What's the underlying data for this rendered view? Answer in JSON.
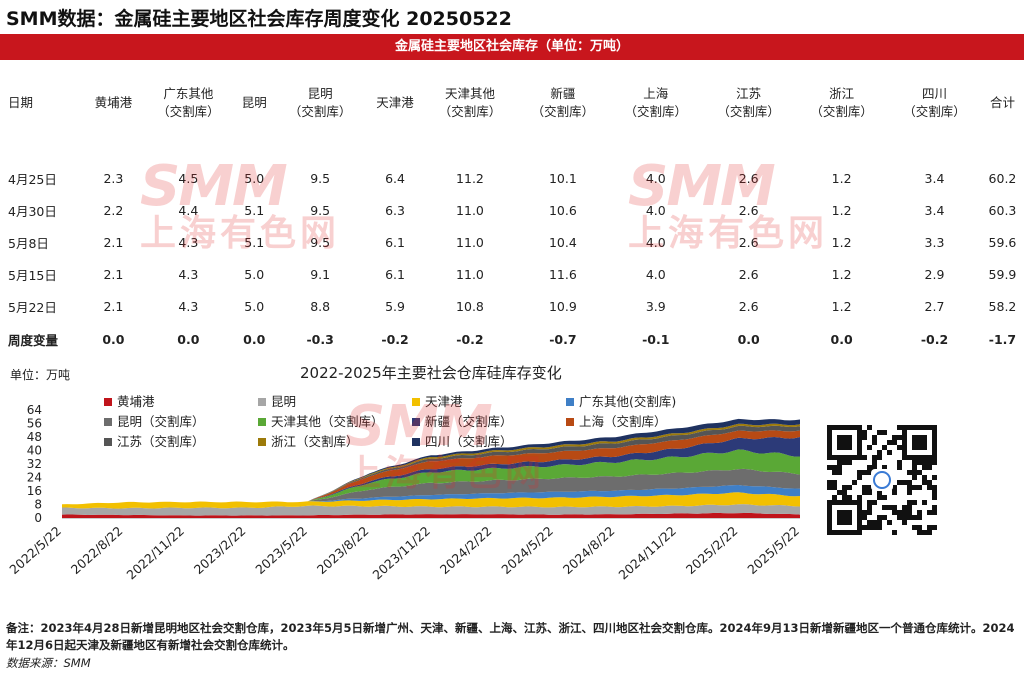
{
  "title": "SMM数据：金属硅主要地区社会库存周度变化 20250522",
  "banner": "金属硅主要地区社会库存（单位：万吨）",
  "table": {
    "headers": [
      [
        "日期"
      ],
      [
        "黄埔港"
      ],
      [
        "广东其他",
        "（交割库）"
      ],
      [
        "昆明"
      ],
      [
        "昆明",
        "（交割库）"
      ],
      [
        "天津港"
      ],
      [
        "天津其他",
        "（交割库）"
      ],
      [
        "新疆",
        "（交割库）"
      ],
      [
        "上海",
        "（交割库）"
      ],
      [
        "江苏",
        "（交割库）"
      ],
      [
        "浙江",
        "（交割库）"
      ],
      [
        "四川",
        "（交割库）"
      ],
      [
        "合计"
      ]
    ],
    "rows": [
      [
        "4月25日",
        "2.3",
        "4.5",
        "5.0",
        "9.5",
        "6.4",
        "11.2",
        "10.1",
        "4.0",
        "2.6",
        "1.2",
        "3.4",
        "60.2"
      ],
      [
        "4月30日",
        "2.2",
        "4.4",
        "5.1",
        "9.5",
        "6.3",
        "11.0",
        "10.6",
        "4.0",
        "2.6",
        "1.2",
        "3.4",
        "60.3"
      ],
      [
        "5月8日",
        "2.1",
        "4.3",
        "5.1",
        "9.5",
        "6.1",
        "11.0",
        "10.4",
        "4.0",
        "2.6",
        "1.2",
        "3.3",
        "59.6"
      ],
      [
        "5月15日",
        "2.1",
        "4.3",
        "5.0",
        "9.1",
        "6.1",
        "11.0",
        "11.6",
        "4.0",
        "2.6",
        "1.2",
        "2.9",
        "59.9"
      ],
      [
        "5月22日",
        "2.1",
        "4.3",
        "5.0",
        "8.8",
        "5.9",
        "10.8",
        "10.9",
        "3.9",
        "2.6",
        "1.2",
        "2.7",
        "58.2"
      ]
    ],
    "change": [
      "周度变量",
      "0.0",
      "0.0",
      "0.0",
      "-0.3",
      "-0.2",
      "-0.2",
      "-0.7",
      "-0.1",
      "0.0",
      "0.0",
      "-0.2",
      "-1.7"
    ]
  },
  "watermark": {
    "logo": "SMM",
    "text": "上海有色网"
  },
  "colors": {
    "brand": "#c8161d"
  },
  "chart_data": {
    "type": "area",
    "title": "2022-2025年主要社会仓库硅库存变化",
    "ylabel": "单位：万吨",
    "ylim": [
      0,
      64
    ],
    "yticks": [
      0,
      8,
      16,
      24,
      32,
      40,
      48,
      56,
      64
    ],
    "x": [
      "2022/5/22",
      "2022/8/22",
      "2022/11/22",
      "2023/2/22",
      "2023/5/22",
      "2023/8/22",
      "2023/11/22",
      "2024/2/22",
      "2024/5/22",
      "2024/8/22",
      "2024/11/22",
      "2025/2/22",
      "2025/5/22"
    ],
    "series": [
      {
        "name": "黄埔港",
        "color": "#c0141b",
        "values": [
          2.0,
          1.8,
          1.5,
          1.5,
          1.6,
          2.0,
          2.2,
          2.2,
          2.0,
          2.2,
          2.6,
          3.0,
          2.1
        ]
      },
      {
        "name": "昆明",
        "color": "#a6a6a6",
        "values": [
          4.0,
          4.0,
          4.5,
          4.5,
          5.5,
          5.0,
          4.5,
          4.5,
          4.5,
          4.5,
          4.5,
          5.0,
          5.0
        ]
      },
      {
        "name": "天津港",
        "color": "#f2c000",
        "values": [
          2.0,
          3.5,
          3.5,
          3.5,
          2.5,
          3.5,
          4.5,
          5.0,
          5.5,
          6.0,
          6.5,
          7.0,
          5.9
        ]
      },
      {
        "name": "广东其他(交割库)",
        "color": "#3f7fc6",
        "values": [
          0,
          0,
          0,
          0,
          0,
          1.5,
          2.5,
          3.0,
          3.5,
          3.5,
          4.0,
          4.5,
          4.3
        ]
      },
      {
        "name": "昆明（交割库）",
        "color": "#6d6d6d",
        "values": [
          0,
          0,
          0,
          0,
          0,
          5.0,
          7.0,
          7.5,
          8.0,
          8.5,
          9.0,
          9.5,
          8.8
        ]
      },
      {
        "name": "天津其他（交割库）",
        "color": "#5aa836",
        "values": [
          0,
          0,
          0,
          0,
          0,
          4.0,
          6.5,
          7.0,
          7.5,
          8.5,
          9.5,
          11.0,
          10.8
        ]
      },
      {
        "name": "新疆（交割库）",
        "color": "#2c3a78",
        "values": [
          0,
          0,
          0,
          0,
          0,
          1.0,
          2.0,
          2.5,
          3.0,
          3.5,
          5.0,
          7.0,
          10.9
        ]
      },
      {
        "name": "上海（交割库）",
        "color": "#b84a14",
        "values": [
          0,
          0,
          0,
          0,
          0,
          3.0,
          4.5,
          5.0,
          5.0,
          5.0,
          5.0,
          4.5,
          3.9
        ]
      },
      {
        "name": "江苏（交割库）",
        "color": "#555555",
        "values": [
          0,
          0,
          0,
          0,
          0,
          0.8,
          1.5,
          2.0,
          2.5,
          2.8,
          2.8,
          2.7,
          2.6
        ]
      },
      {
        "name": "浙江（交割库）",
        "color": "#9c7a0a",
        "values": [
          0,
          0,
          0,
          0,
          0,
          0.5,
          1.0,
          1.0,
          1.2,
          1.2,
          1.2,
          1.2,
          1.2
        ]
      },
      {
        "name": "四川（交割库）",
        "color": "#1f3260",
        "values": [
          0,
          0,
          0,
          0,
          0,
          0.5,
          1.0,
          1.5,
          2.0,
          2.5,
          3.0,
          3.0,
          2.7
        ]
      }
    ]
  },
  "note": "备注：2023年4月28日新增昆明地区社会交割仓库，2023年5月5日新增广州、天津、新疆、上海、江苏、浙江、四川地区社会交割仓库。2024年9月13日新增新疆地区一个普通仓库统计。2024年12月6日起天津及新疆地区有新增社会交割仓库统计。",
  "source": "数据来源：SMM"
}
